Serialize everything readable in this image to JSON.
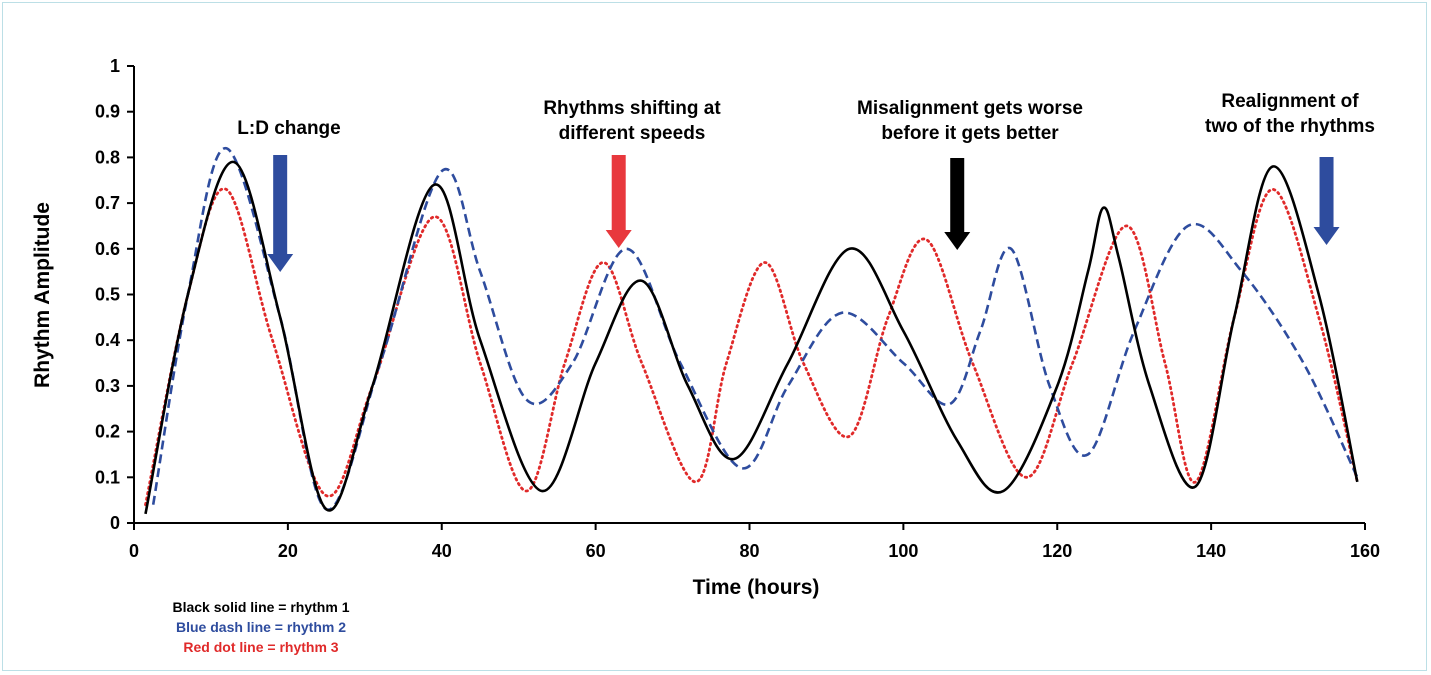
{
  "chart_data": {
    "type": "line",
    "title": "",
    "xlabel": "Time (hours)",
    "ylabel": "Rhythm Amplitude",
    "xlim": [
      0,
      160
    ],
    "ylim": [
      0,
      1
    ],
    "x_ticks": [
      0,
      20,
      40,
      60,
      80,
      100,
      120,
      140,
      160
    ],
    "y_ticks": [
      0,
      0.1,
      0.2,
      0.3,
      0.4,
      0.5,
      0.6,
      0.7,
      0.8,
      0.9,
      1
    ],
    "y_tick_labels": [
      "0",
      "0.1",
      "0.2",
      "0.3",
      "0.4",
      "0.5",
      "0.6",
      "0.7",
      "0.8",
      "0.9",
      "1"
    ],
    "grid": false,
    "series": [
      {
        "name": "rhythm 1",
        "color": "#000000",
        "style": "solid",
        "points": [
          [
            1.5,
            0.02
          ],
          [
            7,
            0.5
          ],
          [
            13,
            0.79
          ],
          [
            19,
            0.45
          ],
          [
            25,
            0.03
          ],
          [
            31,
            0.3
          ],
          [
            39,
            0.74
          ],
          [
            45,
            0.4
          ],
          [
            53,
            0.07
          ],
          [
            60,
            0.35
          ],
          [
            66,
            0.53
          ],
          [
            72,
            0.3
          ],
          [
            78,
            0.14
          ],
          [
            85,
            0.35
          ],
          [
            93,
            0.6
          ],
          [
            100,
            0.42
          ],
          [
            107,
            0.18
          ],
          [
            113,
            0.07
          ],
          [
            120,
            0.3
          ],
          [
            124,
            0.55
          ],
          [
            126,
            0.69
          ],
          [
            128,
            0.58
          ],
          [
            132,
            0.3
          ],
          [
            138,
            0.08
          ],
          [
            143,
            0.45
          ],
          [
            148,
            0.78
          ],
          [
            154,
            0.5
          ],
          [
            159,
            0.09
          ]
        ]
      },
      {
        "name": "rhythm 2",
        "color": "#2e4c9e",
        "style": "dashed",
        "points": [
          [
            2.5,
            0.04
          ],
          [
            7,
            0.5
          ],
          [
            12,
            0.82
          ],
          [
            19,
            0.45
          ],
          [
            25,
            0.03
          ],
          [
            32,
            0.35
          ],
          [
            40,
            0.77
          ],
          [
            45,
            0.55
          ],
          [
            51,
            0.27
          ],
          [
            57,
            0.35
          ],
          [
            64,
            0.6
          ],
          [
            71,
            0.35
          ],
          [
            79,
            0.12
          ],
          [
            85,
            0.3
          ],
          [
            92,
            0.46
          ],
          [
            100,
            0.35
          ],
          [
            106,
            0.26
          ],
          [
            110,
            0.42
          ],
          [
            114,
            0.6
          ],
          [
            119,
            0.3
          ],
          [
            124,
            0.15
          ],
          [
            130,
            0.42
          ],
          [
            137,
            0.65
          ],
          [
            144,
            0.55
          ],
          [
            152,
            0.35
          ],
          [
            159,
            0.1
          ]
        ]
      },
      {
        "name": "rhythm 3",
        "color": "#e02a2a",
        "style": "dotted",
        "points": [
          [
            1.5,
            0.04
          ],
          [
            7,
            0.5
          ],
          [
            12,
            0.73
          ],
          [
            18,
            0.4
          ],
          [
            25,
            0.06
          ],
          [
            31,
            0.3
          ],
          [
            39,
            0.67
          ],
          [
            45,
            0.35
          ],
          [
            51,
            0.07
          ],
          [
            56,
            0.35
          ],
          [
            61,
            0.57
          ],
          [
            66,
            0.35
          ],
          [
            73,
            0.09
          ],
          [
            77,
            0.35
          ],
          [
            82,
            0.57
          ],
          [
            87,
            0.35
          ],
          [
            93,
            0.19
          ],
          [
            98,
            0.45
          ],
          [
            103,
            0.62
          ],
          [
            109,
            0.35
          ],
          [
            116,
            0.1
          ],
          [
            122,
            0.35
          ],
          [
            129,
            0.65
          ],
          [
            134,
            0.35
          ],
          [
            138,
            0.09
          ],
          [
            143,
            0.45
          ],
          [
            148,
            0.73
          ],
          [
            154,
            0.45
          ],
          [
            159,
            0.09
          ]
        ]
      }
    ],
    "annotations": [
      {
        "lines": [
          "L:D change"
        ],
        "arrow_x": 19,
        "arrow_color": "#2e4c9e"
      },
      {
        "lines": [
          "Rhythms shifting at",
          "different speeds"
        ],
        "arrow_x": 63,
        "arrow_color": "#e8383d"
      },
      {
        "lines": [
          "Misalignment gets worse",
          "before it gets better"
        ],
        "arrow_x": 107,
        "arrow_color": "#000000"
      },
      {
        "lines": [
          "Realignment of",
          "two of  the rhythms"
        ],
        "arrow_x": 155,
        "arrow_color": "#2e4c9e"
      }
    ],
    "legend": [
      {
        "label": "Black solid line = rhythm 1",
        "color": "#000000"
      },
      {
        "label": "Blue dash line = rhythm 2",
        "color": "#2e4c9e"
      },
      {
        "label": "Red dot line = rhythm 3",
        "color": "#e02a2a"
      }
    ],
    "legend_position": "bottom-left"
  }
}
